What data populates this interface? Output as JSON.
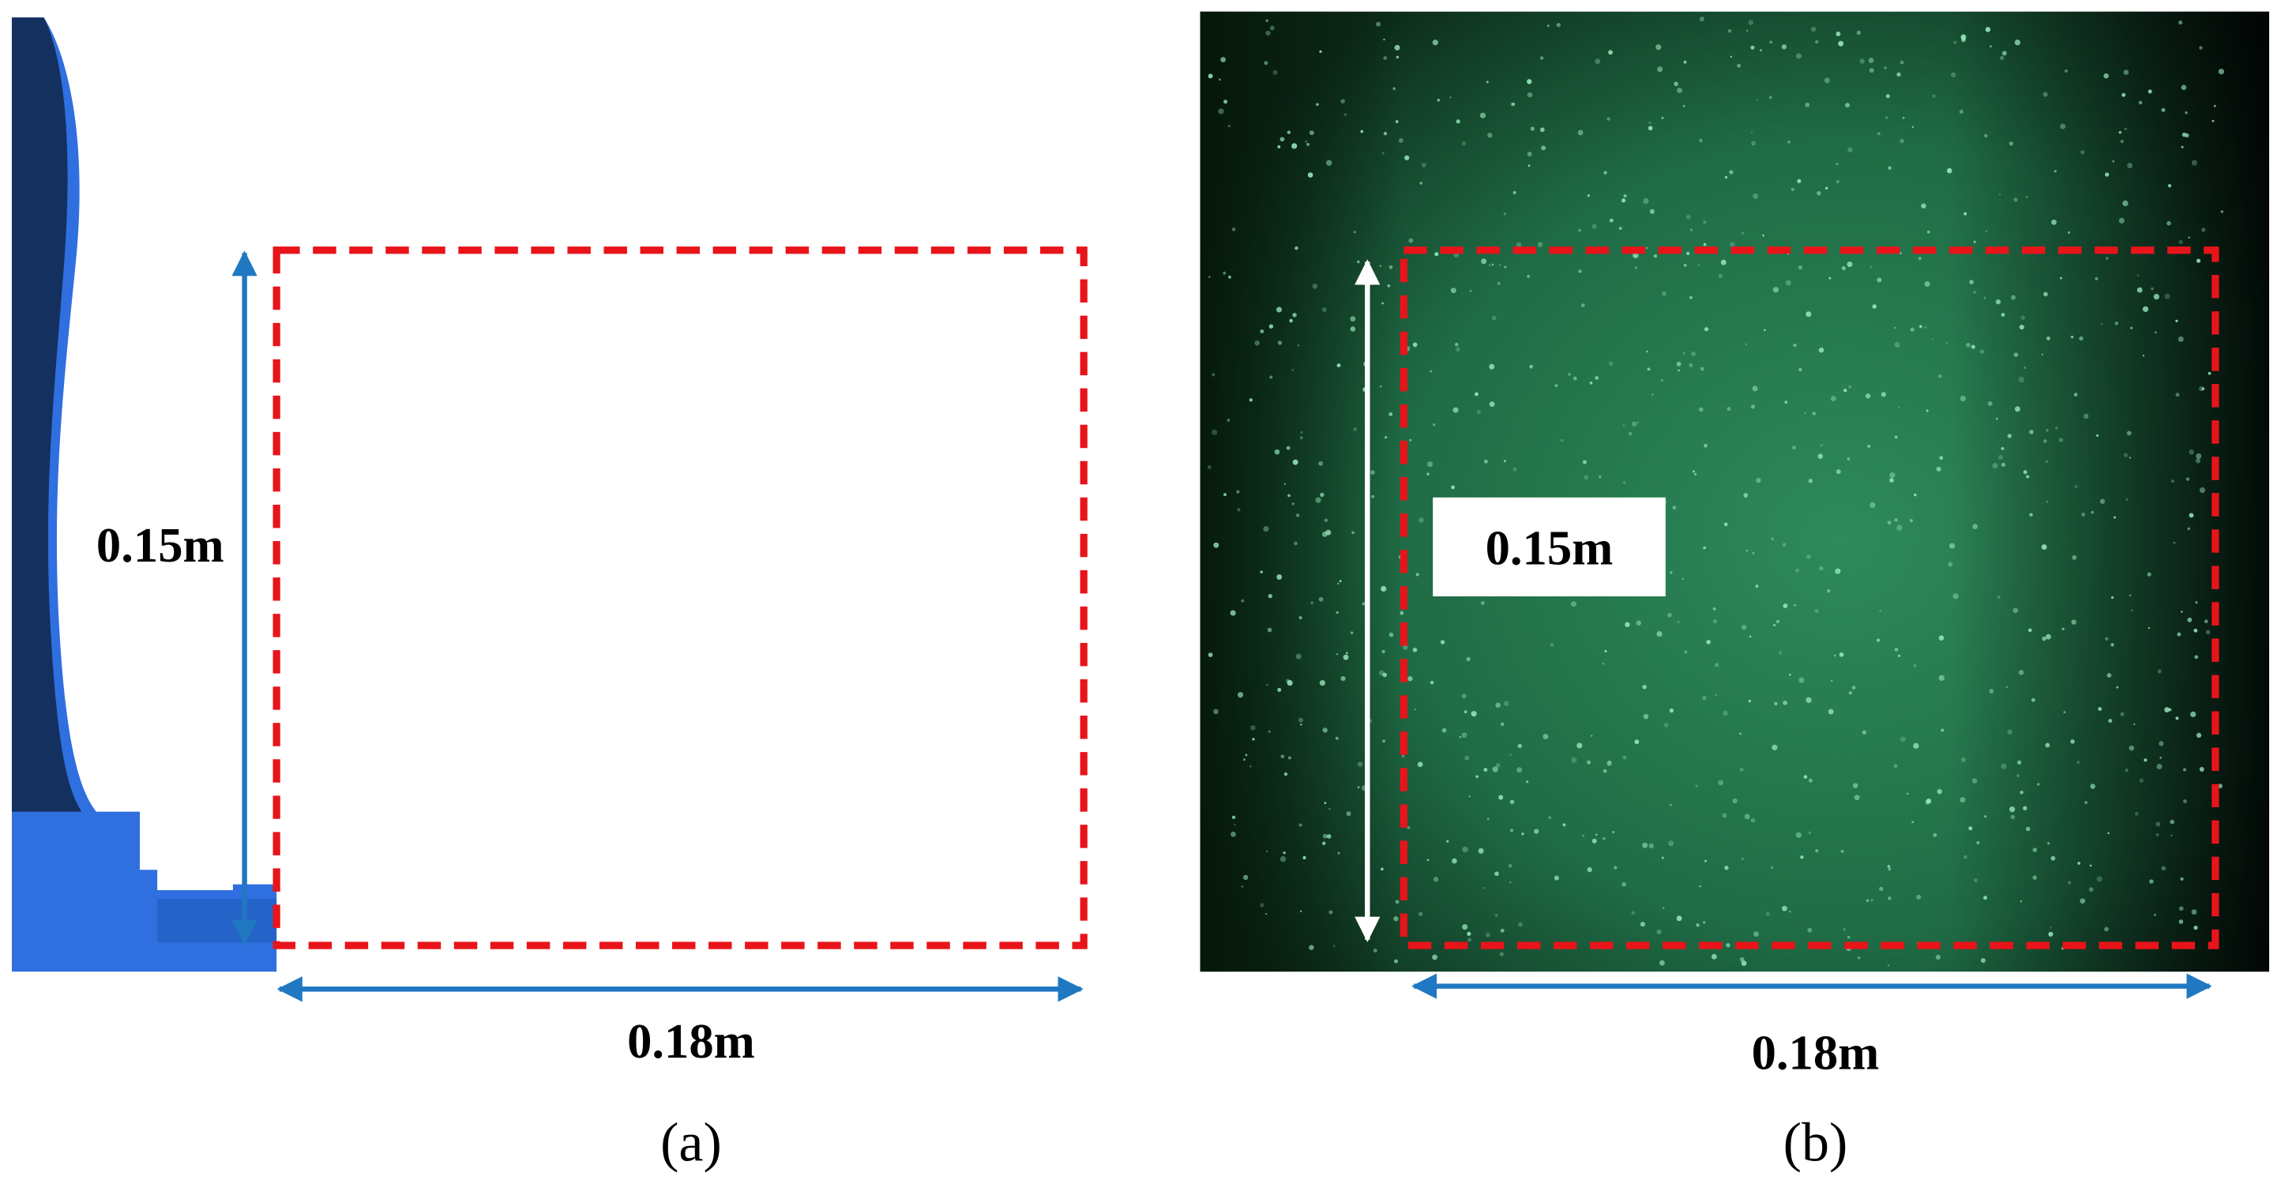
{
  "panels": [
    {
      "height_label": "0.15m",
      "width_label": "0.18m",
      "caption": "(a)"
    },
    {
      "height_label": "0.15m",
      "width_label": "0.18m",
      "caption": "(b)"
    }
  ]
}
